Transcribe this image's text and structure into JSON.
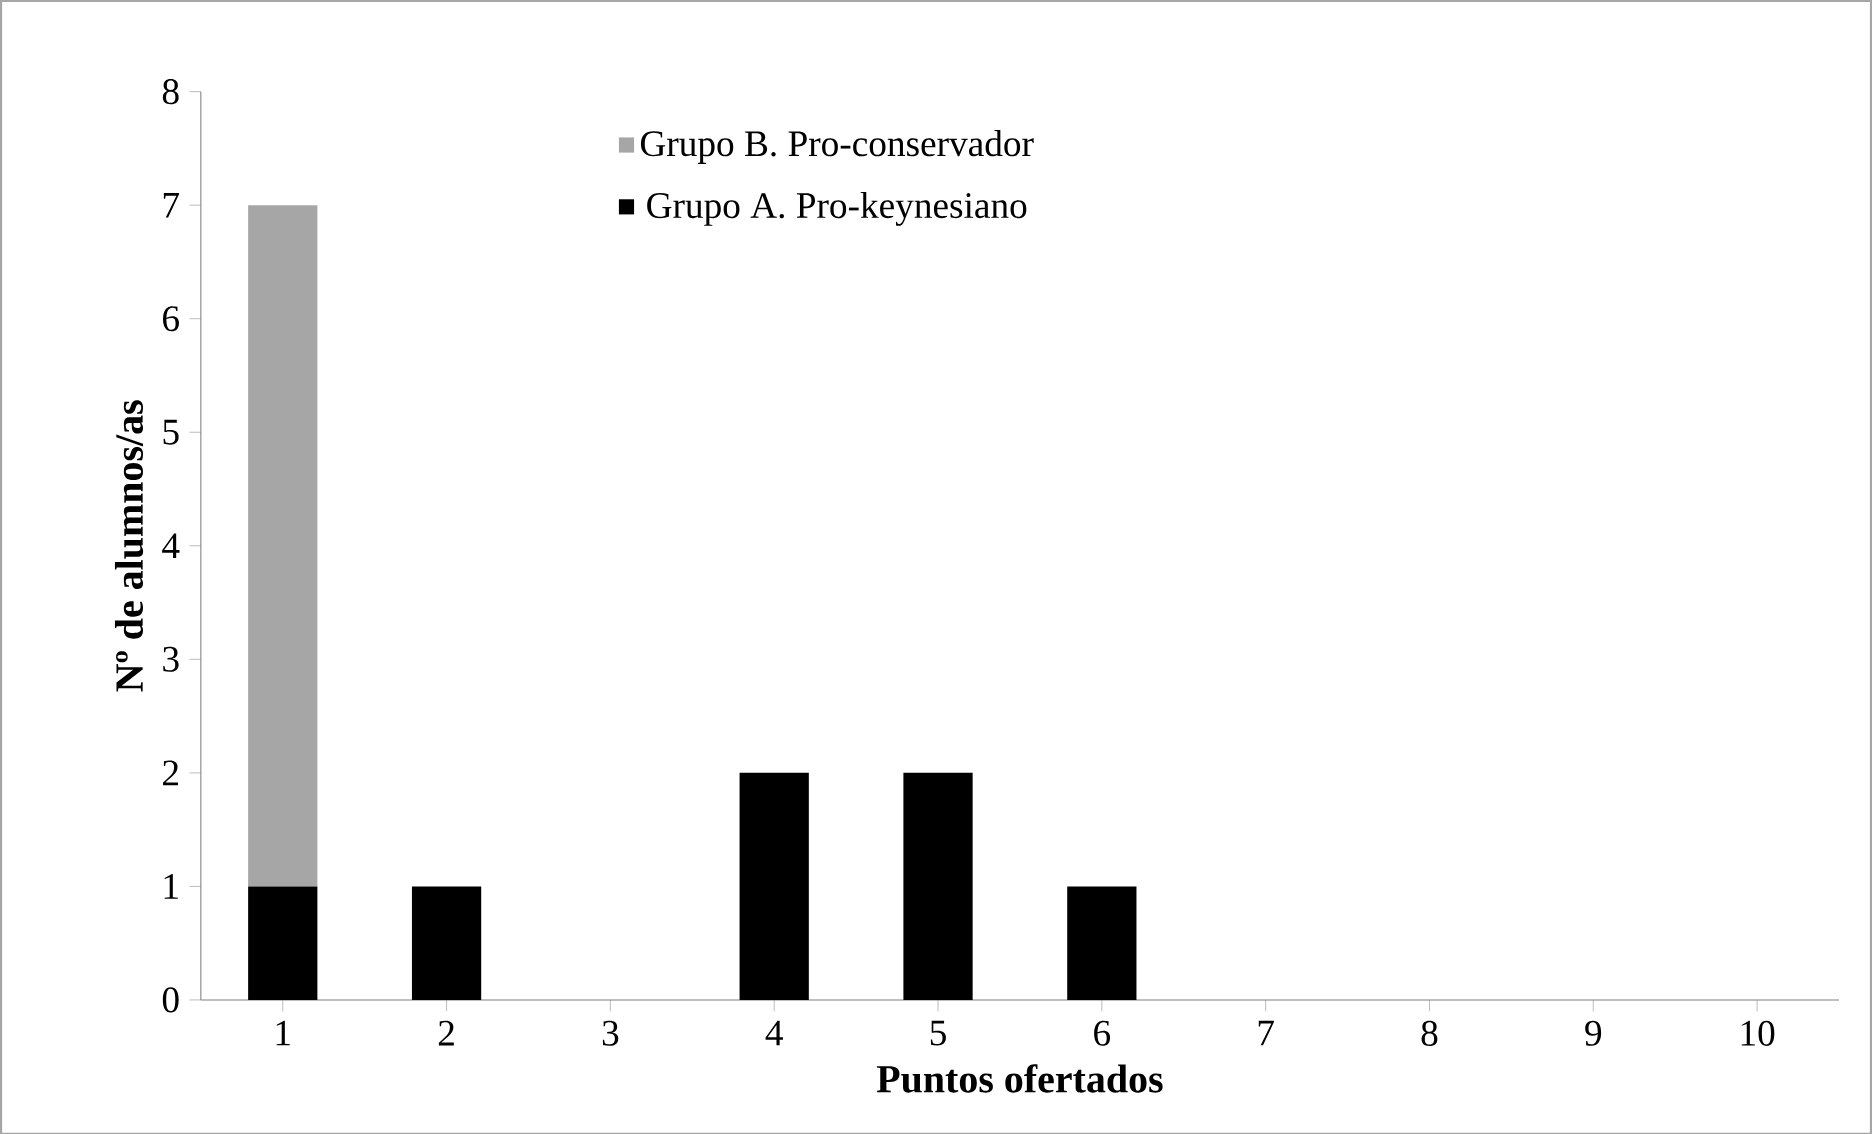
{
  "chart_data": {
    "type": "bar",
    "stacked": true,
    "xlabel": "Puntos ofertados",
    "ylabel": "Nº de alumnos/as",
    "categories": [
      "1",
      "2",
      "3",
      "4",
      "5",
      "6",
      "7",
      "8",
      "9",
      "10"
    ],
    "series": [
      {
        "name": "Grupo A. Pro-keynesiano",
        "color": "#000000",
        "values": [
          1,
          1,
          0,
          2,
          2,
          1,
          0,
          0,
          0,
          0
        ]
      },
      {
        "name": "Grupo B. Pro-conservador",
        "color": "#a6a6a6",
        "values": [
          6,
          0,
          0,
          0,
          0,
          0,
          0,
          0,
          0,
          0
        ]
      }
    ],
    "ylim": [
      0,
      8
    ],
    "yticks": [
      0,
      1,
      2,
      3,
      4,
      5,
      6,
      7,
      8
    ],
    "grid": false,
    "legend": "top left"
  }
}
